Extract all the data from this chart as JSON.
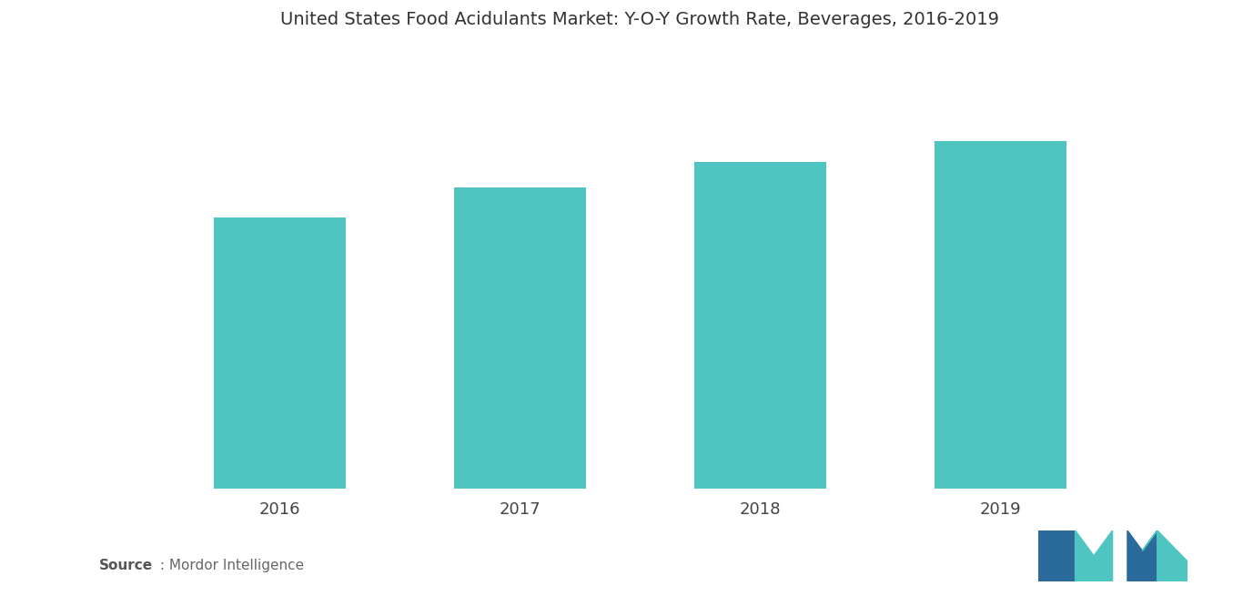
{
  "title": "United States Food Acidulants Market: Y-O-Y Growth Rate, Beverages, 2016-2019",
  "categories": [
    "2016",
    "2017",
    "2018",
    "2019"
  ],
  "values": [
    3.2,
    3.55,
    3.85,
    4.1
  ],
  "bar_color": "#4EC5C1",
  "background_color": "#ffffff",
  "title_fontsize": 14,
  "tick_fontsize": 13,
  "source_bold": "Source",
  "source_rest": " : Mordor Intelligence",
  "ylim": [
    0,
    5.2
  ],
  "xlim": [
    -0.75,
    3.75
  ],
  "bar_width": 0.55,
  "logo_color_blue": "#2A6B9B",
  "logo_color_teal": "#4EC5C1"
}
